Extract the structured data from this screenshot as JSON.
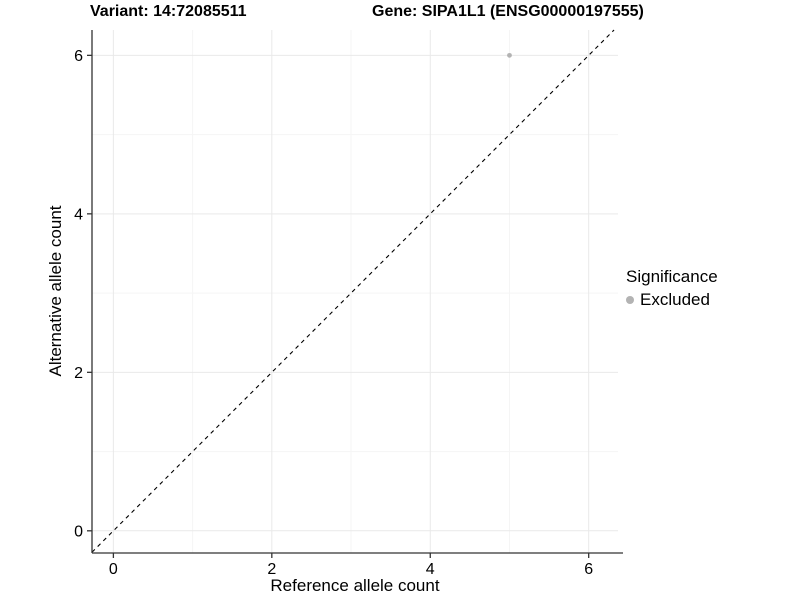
{
  "chart_data": {
    "type": "scatter",
    "title_left": "Variant: 14:72085511",
    "title_right": "Gene: SIPA1L1 (ENSG00000197555)",
    "xlabel": "Reference allele count",
    "ylabel": "Alternative allele count",
    "xlim": [
      -0.27,
      6.37
    ],
    "ylim": [
      -0.28,
      6.32
    ],
    "x_ticks": [
      0,
      2,
      4,
      6
    ],
    "y_ticks": [
      0,
      2,
      4,
      6
    ],
    "x_minor_ticks": [
      1,
      3,
      5
    ],
    "y_minor_ticks": [
      1,
      3,
      5
    ],
    "grid": true,
    "identity_line": {
      "slope": 1,
      "intercept": 0,
      "style": "dashed",
      "color": "#000000"
    },
    "series": [
      {
        "name": "Excluded",
        "color": "#b3b3b3",
        "points": [
          {
            "x": 5,
            "y": 6
          }
        ]
      }
    ],
    "legend": {
      "title": "Significance",
      "position": "right",
      "items": [
        {
          "label": "Excluded",
          "color": "#b3b3b3",
          "marker": "circle"
        }
      ]
    },
    "colors": {
      "axis": "#333333",
      "grid_major": "#e9e9e9",
      "grid_minor": "#f5f5f5",
      "tick_text": "#000000",
      "background": "#ffffff"
    }
  }
}
